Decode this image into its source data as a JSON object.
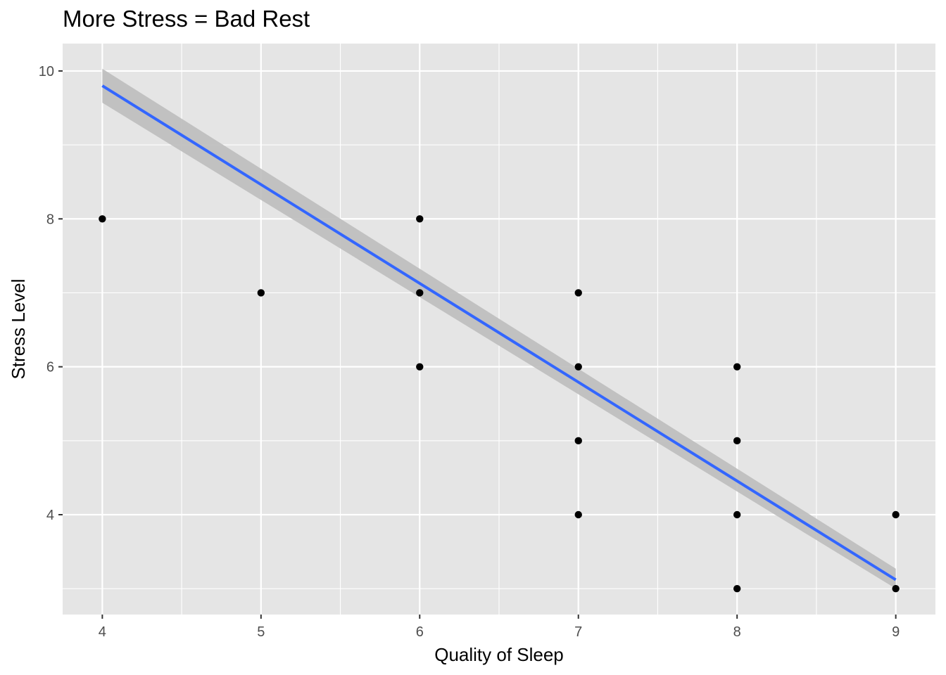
{
  "chart_data": {
    "type": "scatter",
    "title": "More Stress = Bad Rest",
    "xlabel": "Quality of Sleep",
    "ylabel": "Stress Level",
    "xlim": [
      3.75,
      9.25
    ],
    "ylim": [
      2.65,
      10.37
    ],
    "x_ticks": [
      4,
      5,
      6,
      7,
      8,
      9
    ],
    "y_ticks": [
      4,
      6,
      8,
      10
    ],
    "grid": true,
    "points": [
      {
        "x": 4,
        "y": 8
      },
      {
        "x": 5,
        "y": 7
      },
      {
        "x": 6,
        "y": 8
      },
      {
        "x": 6,
        "y": 7
      },
      {
        "x": 6,
        "y": 6
      },
      {
        "x": 7,
        "y": 7
      },
      {
        "x": 7,
        "y": 6
      },
      {
        "x": 7,
        "y": 5
      },
      {
        "x": 7,
        "y": 4
      },
      {
        "x": 8,
        "y": 6
      },
      {
        "x": 8,
        "y": 5
      },
      {
        "x": 8,
        "y": 4
      },
      {
        "x": 8,
        "y": 3
      },
      {
        "x": 9,
        "y": 4
      },
      {
        "x": 9,
        "y": 3
      }
    ],
    "trend_line": {
      "method": "linear",
      "start": {
        "x": 4,
        "y": 9.8
      },
      "end": {
        "x": 9,
        "y": 3.12
      },
      "confidence_band": {
        "lower": [
          9.57,
          3.0
        ],
        "upper": [
          10.03,
          3.27
        ]
      },
      "color": "#3366ff",
      "band_color": "#bdbdbd"
    },
    "colors": {
      "panel": "#e5e5e5",
      "grid": "#ffffff",
      "point": "#000000"
    }
  }
}
